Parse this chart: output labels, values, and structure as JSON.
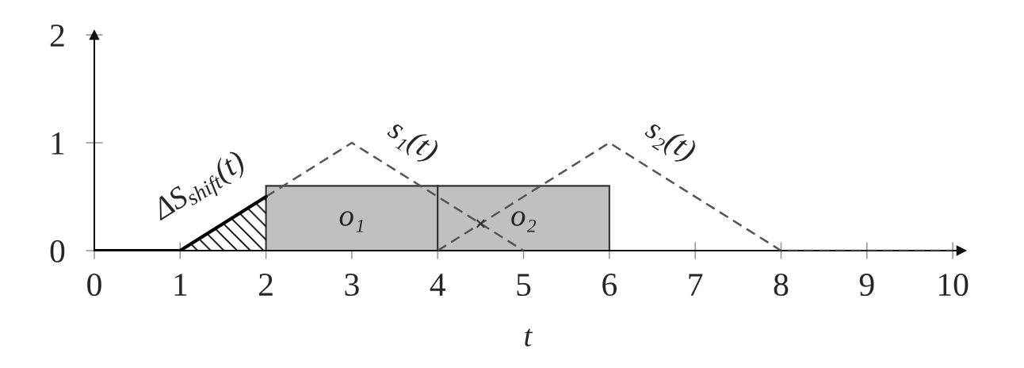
{
  "chart_data": {
    "type": "line",
    "xlabel": "t",
    "xlim": [
      0,
      10.1
    ],
    "ylim": [
      0,
      2
    ],
    "xticks": [
      0,
      1,
      2,
      3,
      4,
      5,
      6,
      7,
      8,
      9,
      10
    ],
    "yticks": [
      0,
      1,
      2
    ],
    "grid": false,
    "legend": false,
    "series": [
      {
        "type": "bar",
        "name": "o₁",
        "x": [
          3
        ],
        "values": [
          0.6
        ],
        "color": "#c0c0c0"
      },
      {
        "type": "bar",
        "name": "o₂",
        "x": [
          5
        ],
        "values": [
          0.6
        ],
        "color": "#c0c0c0"
      },
      {
        "type": "area",
        "name": "ΔS$_{shift}$(t)",
        "x": [
          0,
          1,
          2
        ],
        "values": [
          0,
          0,
          0.5
        ],
        "color": "#000000",
        "line_style": "solid"
      },
      {
        "type": "line",
        "name": "s₁(t)",
        "x": [
          2,
          3,
          5
        ],
        "values": [
          0.5,
          1,
          0
        ],
        "color": "#555555",
        "line_style": "dashed"
      },
      {
        "name": "s₂(t)",
        "x": [
          4,
          6,
          8,
          10
        ],
        "values": [
          0,
          1,
          0,
          0
        ],
        "color": "#555555",
        "line_style": "dashed"
      },
      {
        "type": "scatter",
        "x": [
          4.5
        ],
        "values": [
          0.25
        ],
        "color": "#333333",
        "marker": "cross"
      }
    ]
  }
}
